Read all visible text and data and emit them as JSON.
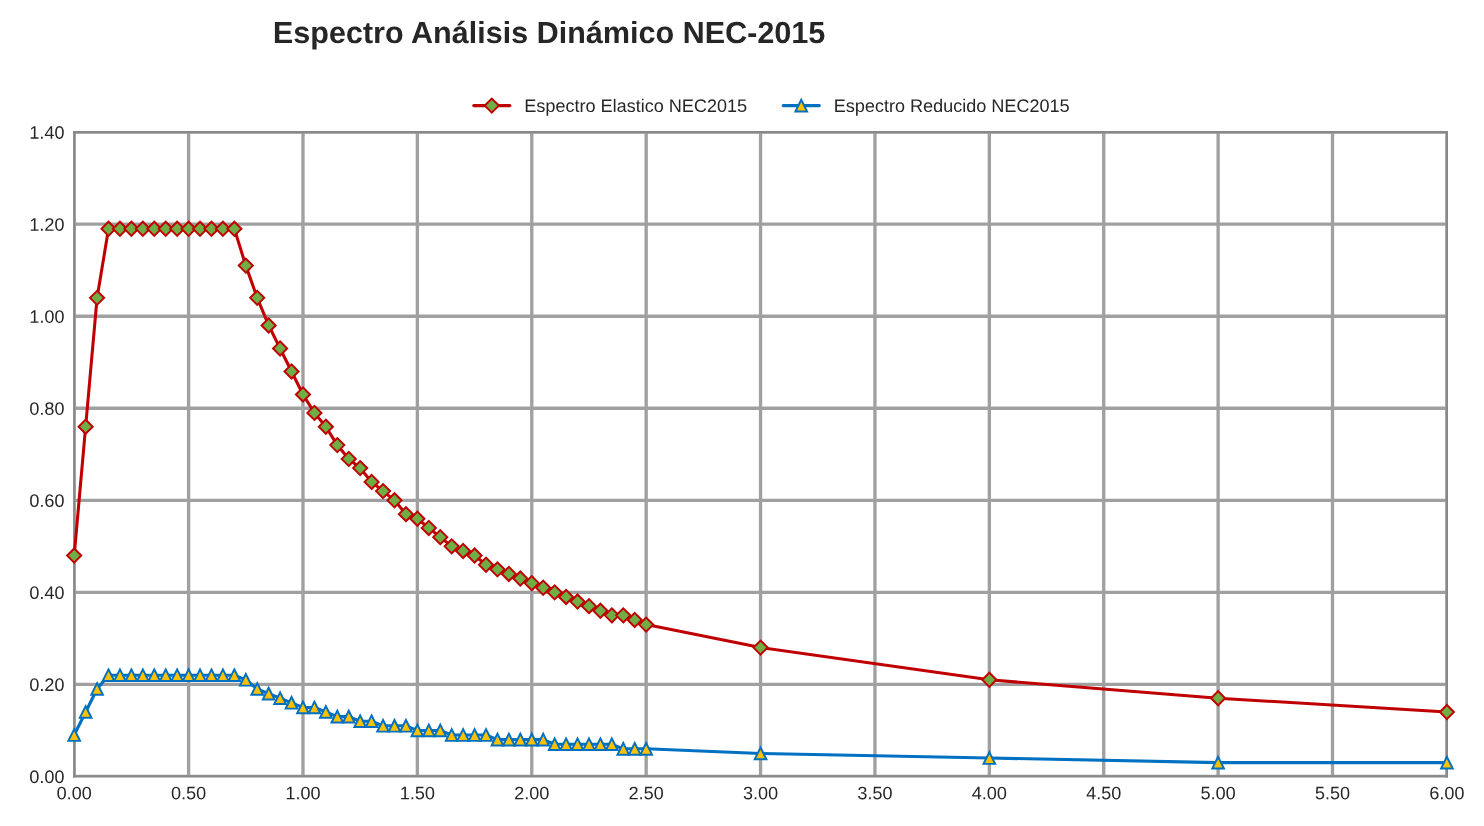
{
  "chart_data": {
    "type": "line",
    "title": "Espectro Análisis Dinámico NEC-2015",
    "x": [
      0,
      0.05,
      0.1,
      0.15,
      0.2,
      0.25,
      0.3,
      0.35,
      0.4,
      0.45,
      0.5,
      0.55,
      0.6,
      0.65,
      0.7,
      0.75,
      0.8,
      0.85,
      0.9,
      0.95,
      1.0,
      1.05,
      1.1,
      1.15,
      1.2,
      1.25,
      1.3,
      1.35,
      1.4,
      1.45,
      1.5,
      1.55,
      1.6,
      1.65,
      1.7,
      1.75,
      1.8,
      1.85,
      1.9,
      1.95,
      2.0,
      2.05,
      2.1,
      2.15,
      2.2,
      2.25,
      2.3,
      2.35,
      2.4,
      2.45,
      2.5,
      3,
      4,
      5,
      6
    ],
    "series": [
      {
        "name": "Espectro Elastico NEC2015",
        "color": "#c00000",
        "marker": "diamond",
        "values": [
          0.48,
          0.76,
          1.04,
          1.19,
          1.19,
          1.19,
          1.19,
          1.19,
          1.19,
          1.19,
          1.19,
          1.19,
          1.19,
          1.19,
          1.19,
          1.11,
          1.04,
          0.98,
          0.93,
          0.88,
          0.83,
          0.79,
          0.76,
          0.72,
          0.69,
          0.67,
          0.64,
          0.62,
          0.6,
          0.57,
          0.56,
          0.54,
          0.52,
          0.5,
          0.49,
          0.48,
          0.46,
          0.45,
          0.44,
          0.43,
          0.42,
          0.41,
          0.4,
          0.39,
          0.38,
          0.37,
          0.36,
          0.35,
          0.35,
          0.34,
          0.33,
          0.28,
          0.21,
          0.17,
          0.14
        ]
      },
      {
        "name": "Espectro Reducido NEC2015",
        "color": "#0070c0",
        "marker": "triangle",
        "values": [
          0.09,
          0.14,
          0.19,
          0.22,
          0.22,
          0.22,
          0.22,
          0.22,
          0.22,
          0.22,
          0.22,
          0.22,
          0.22,
          0.22,
          0.22,
          0.21,
          0.19,
          0.18,
          0.17,
          0.16,
          0.15,
          0.15,
          0.14,
          0.13,
          0.13,
          0.12,
          0.12,
          0.11,
          0.11,
          0.11,
          0.1,
          0.1,
          0.1,
          0.09,
          0.09,
          0.09,
          0.09,
          0.08,
          0.08,
          0.08,
          0.08,
          0.08,
          0.07,
          0.07,
          0.07,
          0.07,
          0.07,
          0.07,
          0.06,
          0.06,
          0.06,
          0.05,
          0.04,
          0.03,
          0.03
        ]
      }
    ],
    "xlim": [
      0,
      6
    ],
    "ylim": [
      0,
      1.4
    ],
    "xticks": [
      {
        "value": 0,
        "label": "0.00"
      },
      {
        "value": 0.5,
        "label": "0.50"
      },
      {
        "value": 1,
        "label": "1.00"
      },
      {
        "value": 1.5,
        "label": "1.50"
      },
      {
        "value": 2,
        "label": "2.00"
      },
      {
        "value": 2.5,
        "label": "2.50"
      },
      {
        "value": 3,
        "label": "3.00"
      },
      {
        "value": 3.5,
        "label": "3.50"
      },
      {
        "value": 4,
        "label": "4.00"
      },
      {
        "value": 4.5,
        "label": "4.50"
      },
      {
        "value": 5,
        "label": "5.00"
      },
      {
        "value": 5.5,
        "label": "5.50"
      },
      {
        "value": 6,
        "label": "6.00"
      }
    ],
    "yticks": [
      {
        "value": 0,
        "label": "0.00"
      },
      {
        "value": 0.2,
        "label": "0.20"
      },
      {
        "value": 0.4,
        "label": "0.40"
      },
      {
        "value": 0.6,
        "label": "0.60"
      },
      {
        "value": 0.8,
        "label": "0.80"
      },
      {
        "value": 1.0,
        "label": "1.00"
      },
      {
        "value": 1.2,
        "label": "1.20"
      },
      {
        "value": 1.4,
        "label": "1.40"
      }
    ],
    "grid": true,
    "legend": "top",
    "line_style": "solid"
  }
}
